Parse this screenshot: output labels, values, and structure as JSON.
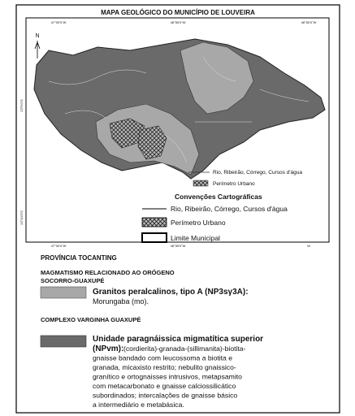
{
  "title": "MAPA GEOLÓGICO DO MUNICÍPIO DE LOUVEIRA",
  "map": {
    "north": "N",
    "top_coords": [
      "47°00'0\"W",
      "46°55'0\"W",
      "46°50'0\"W"
    ],
    "left_coords": [
      "23°5'0\"S",
      "23°10'0\"S"
    ],
    "bottom_coords": [
      "47°00'0\"W",
      "46°55'0\"W",
      "W"
    ]
  },
  "inset_legend": [
    "Rio, Ribeirão, Córrego, Cursos d'água",
    "Perímetro Urbano"
  ],
  "conventions": {
    "title": "Convenções Cartográficas",
    "items": [
      "Rio, Ribeirão, Córrego, Cursos d'água",
      "Perímetro Urbano",
      "Limite Municipal"
    ]
  },
  "legend": {
    "province": "PROVÍNCIA TOCANTING",
    "group1": {
      "title_lines": [
        "MAGMATISMO RELACIONADO AO ORÓGENO",
        "SOCORRO-GUAXUPÉ"
      ],
      "unit_name": "Granitos peralcalinos, tipo A (NP3sγ3A):",
      "unit_desc": "Morungaba (mo)."
    },
    "group2": {
      "title": "COMPLEXO VARGINHA GUAXUPÉ",
      "unit_name_lines": [
        "Unidade paragnáissica migmatítica superior",
        "(NPvm):"
      ],
      "desc_lines": [
        "(cordierita)-granada-(sillimanita)-biotita-",
        "gnaisse bandado com leucossoma a biotita e",
        "granada, micaxisto restrito; nebulito gnaissico-",
        "granítico e ortognaisses intrusivos, metapsamito",
        "com metacarbonato e gnaisse calciossilicático",
        "subordinados; intercalações de gnaisse básico",
        "a intermediário e metabásica."
      ]
    }
  }
}
